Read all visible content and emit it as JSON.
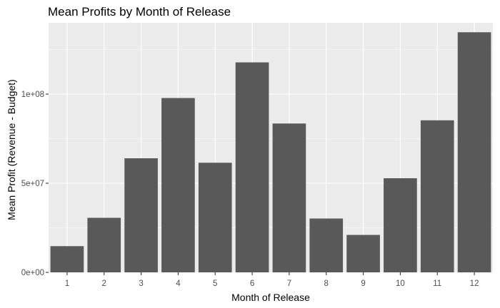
{
  "chart_data": {
    "type": "bar",
    "title": "Mean Profits by Month of Release",
    "xlabel": "Month of Release",
    "ylabel": "Mean Profit (Revenue - Budget)",
    "categories": [
      "1",
      "2",
      "3",
      "4",
      "5",
      "6",
      "7",
      "8",
      "9",
      "10",
      "11",
      "12"
    ],
    "values": [
      14700000,
      30600000,
      64000000,
      97800000,
      61500000,
      117800000,
      83500000,
      30200000,
      21000000,
      52800000,
      85300000,
      134700000
    ],
    "ylim": [
      0,
      140000000
    ],
    "yticks": [
      0,
      50000000,
      100000000
    ],
    "ytick_labels": [
      "0e+00",
      "5e+07",
      "1e+08"
    ],
    "grid": true,
    "colors": {
      "panel_background": "#ebebeb",
      "bar_fill": "#595959",
      "grid": "#ffffff"
    }
  }
}
